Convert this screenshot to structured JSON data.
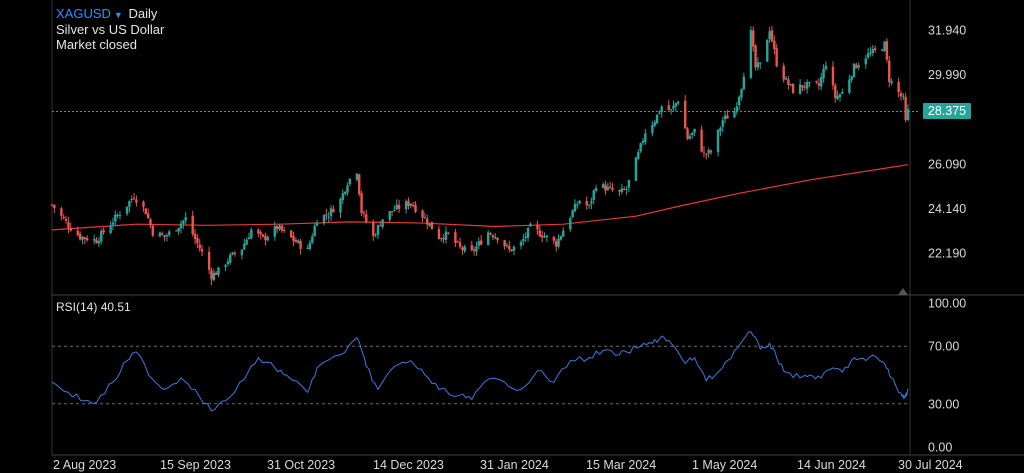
{
  "header": {
    "symbol": "XAGUSD",
    "interval": "Daily",
    "description": "Silver vs US Dollar",
    "status": "Market closed"
  },
  "last_price": "28.375",
  "rsi": {
    "label": "RSI(14)",
    "value": "40.51"
  },
  "colors": {
    "up": "#26a69a",
    "down": "#ef5350",
    "ma": "#e53935",
    "rsi_line": "#3b7be0",
    "grid": "#2a2a2a"
  },
  "chart_data": [
    {
      "type": "candlestick",
      "x_tick_labels": [
        "2 Aug 2023",
        "15 Sep 2023",
        "31 Oct 2023",
        "14 Dec 2023",
        "31 Jan 2024",
        "15 Mar 2024",
        "1 May 2024",
        "14 Jun 2024",
        "30 Jul 2024"
      ],
      "y_tick_labels": [
        "31.940",
        "29.990",
        "26.090",
        "24.140",
        "22.190"
      ],
      "ylim": [
        21.0,
        32.9
      ],
      "last_value": 28.375,
      "x_range": [
        "2023-07-27",
        "2024-07-26"
      ],
      "moving_average": {
        "points": [
          [
            "2023-07-27",
            23.2
          ],
          [
            "2023-09-01",
            23.45
          ],
          [
            "2023-10-01",
            23.4
          ],
          [
            "2023-11-01",
            23.45
          ],
          [
            "2023-12-01",
            23.55
          ],
          [
            "2024-01-01",
            23.5
          ],
          [
            "2024-02-01",
            23.35
          ],
          [
            "2024-03-01",
            23.45
          ],
          [
            "2024-04-01",
            23.8
          ],
          [
            "2024-04-20",
            24.25
          ],
          [
            "2024-05-15",
            24.8
          ],
          [
            "2024-06-15",
            25.4
          ],
          [
            "2024-07-26",
            26.05
          ]
        ]
      },
      "price_path": [
        [
          "2023-07-27",
          24.3
        ],
        [
          "2023-08-03",
          23.4
        ],
        [
          "2023-08-08",
          22.9
        ],
        [
          "2023-08-15",
          22.75
        ],
        [
          "2023-08-22",
          23.6
        ],
        [
          "2023-08-28",
          24.3
        ],
        [
          "2023-08-31",
          24.7
        ],
        [
          "2023-09-05",
          24.0
        ],
        [
          "2023-09-08",
          23.1
        ],
        [
          "2023-09-13",
          22.9
        ],
        [
          "2023-09-18",
          23.3
        ],
        [
          "2023-09-22",
          23.7
        ],
        [
          "2023-09-26",
          22.8
        ],
        [
          "2023-09-29",
          22.2
        ],
        [
          "2023-10-03",
          21.2
        ],
        [
          "2023-10-06",
          21.4
        ],
        [
          "2023-10-11",
          22.0
        ],
        [
          "2023-10-16",
          22.4
        ],
        [
          "2023-10-20",
          23.2
        ],
        [
          "2023-10-25",
          22.8
        ],
        [
          "2023-10-31",
          23.3
        ],
        [
          "2023-11-04",
          23.0
        ],
        [
          "2023-11-09",
          22.6
        ],
        [
          "2023-11-13",
          22.3
        ],
        [
          "2023-11-17",
          23.7
        ],
        [
          "2023-11-22",
          23.9
        ],
        [
          "2023-11-27",
          24.5
        ],
        [
          "2023-11-30",
          25.3
        ],
        [
          "2023-12-04",
          25.8
        ],
        [
          "2023-12-06",
          24.0
        ],
        [
          "2023-12-11",
          22.9
        ],
        [
          "2023-12-15",
          23.7
        ],
        [
          "2023-12-20",
          24.1
        ],
        [
          "2023-12-27",
          24.4
        ],
        [
          "2024-01-02",
          23.7
        ],
        [
          "2024-01-08",
          22.9
        ],
        [
          "2024-01-12",
          23.0
        ],
        [
          "2024-01-17",
          22.4
        ],
        [
          "2024-01-22",
          22.2
        ],
        [
          "2024-01-29",
          23.1
        ],
        [
          "2024-02-02",
          22.9
        ],
        [
          "2024-02-07",
          22.3
        ],
        [
          "2024-02-12",
          22.6
        ],
        [
          "2024-02-16",
          23.3
        ],
        [
          "2024-02-21",
          23.0
        ],
        [
          "2024-02-27",
          22.6
        ],
        [
          "2024-03-01",
          23.2
        ],
        [
          "2024-03-05",
          24.0
        ],
        [
          "2024-03-08",
          24.5
        ],
        [
          "2024-03-12",
          24.2
        ],
        [
          "2024-03-15",
          25.2
        ],
        [
          "2024-03-20",
          25.0
        ],
        [
          "2024-03-25",
          24.8
        ],
        [
          "2024-03-28",
          25.0
        ],
        [
          "2024-04-02",
          26.5
        ],
        [
          "2024-04-05",
          27.5
        ],
        [
          "2024-04-09",
          28.0
        ],
        [
          "2024-04-12",
          28.6
        ],
        [
          "2024-04-16",
          28.4
        ],
        [
          "2024-04-19",
          28.9
        ],
        [
          "2024-04-23",
          27.2
        ],
        [
          "2024-04-26",
          27.5
        ],
        [
          "2024-04-30",
          26.5
        ],
        [
          "2024-05-03",
          26.6
        ],
        [
          "2024-05-08",
          28.0
        ],
        [
          "2024-05-13",
          28.4
        ],
        [
          "2024-05-16",
          29.5
        ],
        [
          "2024-05-20",
          31.8
        ],
        [
          "2024-05-22",
          30.3
        ],
        [
          "2024-05-24",
          30.4
        ],
        [
          "2024-05-28",
          32.0
        ],
        [
          "2024-05-31",
          30.5
        ],
        [
          "2024-06-04",
          29.7
        ],
        [
          "2024-06-07",
          29.3
        ],
        [
          "2024-06-11",
          29.5
        ],
        [
          "2024-06-14",
          29.5
        ],
        [
          "2024-06-18",
          29.5
        ],
        [
          "2024-06-21",
          30.5
        ],
        [
          "2024-06-25",
          29.0
        ],
        [
          "2024-06-28",
          29.2
        ],
        [
          "2024-07-03",
          30.3
        ],
        [
          "2024-07-08",
          30.8
        ],
        [
          "2024-07-12",
          31.0
        ],
        [
          "2024-07-16",
          31.3
        ],
        [
          "2024-07-18",
          29.8
        ],
        [
          "2024-07-22",
          29.2
        ],
        [
          "2024-07-24",
          28.9
        ],
        [
          "2024-07-25",
          27.9
        ],
        [
          "2024-07-26",
          28.375
        ]
      ]
    },
    {
      "type": "line",
      "series_label": "RSI(14)",
      "y_tick_labels": [
        "100.00",
        "70.00",
        "30.00",
        "0.00"
      ],
      "ylim": [
        0,
        100
      ],
      "levels": [
        70,
        30
      ],
      "last_value": 40.51,
      "points": [
        [
          "2023-07-27",
          45
        ],
        [
          "2023-08-03",
          38
        ],
        [
          "2023-08-10",
          32
        ],
        [
          "2023-08-15",
          31
        ],
        [
          "2023-08-22",
          45
        ],
        [
          "2023-08-28",
          60
        ],
        [
          "2023-09-01",
          66
        ],
        [
          "2023-09-08",
          47
        ],
        [
          "2023-09-13",
          40
        ],
        [
          "2023-09-20",
          48
        ],
        [
          "2023-09-26",
          40
        ],
        [
          "2023-10-03",
          25
        ],
        [
          "2023-10-09",
          32
        ],
        [
          "2023-10-17",
          47
        ],
        [
          "2023-10-23",
          62
        ],
        [
          "2023-10-30",
          55
        ],
        [
          "2023-11-04",
          50
        ],
        [
          "2023-11-13",
          38
        ],
        [
          "2023-11-17",
          55
        ],
        [
          "2023-11-27",
          64
        ],
        [
          "2023-12-04",
          76
        ],
        [
          "2023-12-08",
          56
        ],
        [
          "2023-12-13",
          40
        ],
        [
          "2023-12-20",
          56
        ],
        [
          "2023-12-27",
          60
        ],
        [
          "2024-01-02",
          50
        ],
        [
          "2024-01-08",
          40
        ],
        [
          "2024-01-17",
          36
        ],
        [
          "2024-01-22",
          33
        ],
        [
          "2024-01-29",
          47
        ],
        [
          "2024-02-05",
          45
        ],
        [
          "2024-02-12",
          40
        ],
        [
          "2024-02-19",
          53
        ],
        [
          "2024-02-26",
          45
        ],
        [
          "2024-03-04",
          60
        ],
        [
          "2024-03-12",
          62
        ],
        [
          "2024-03-18",
          67
        ],
        [
          "2024-03-25",
          64
        ],
        [
          "2024-03-28",
          66
        ],
        [
          "2024-04-03",
          70
        ],
        [
          "2024-04-08",
          72
        ],
        [
          "2024-04-12",
          77
        ],
        [
          "2024-04-16",
          72
        ],
        [
          "2024-04-22",
          58
        ],
        [
          "2024-04-26",
          62
        ],
        [
          "2024-05-01",
          46
        ],
        [
          "2024-05-06",
          52
        ],
        [
          "2024-05-10",
          60
        ],
        [
          "2024-05-16",
          73
        ],
        [
          "2024-05-20",
          80
        ],
        [
          "2024-05-24",
          68
        ],
        [
          "2024-05-28",
          72
        ],
        [
          "2024-05-31",
          62
        ],
        [
          "2024-06-04",
          52
        ],
        [
          "2024-06-10",
          48
        ],
        [
          "2024-06-14",
          50
        ],
        [
          "2024-06-19",
          48
        ],
        [
          "2024-06-24",
          55
        ],
        [
          "2024-06-28",
          52
        ],
        [
          "2024-07-03",
          62
        ],
        [
          "2024-07-08",
          60
        ],
        [
          "2024-07-12",
          63
        ],
        [
          "2024-07-16",
          58
        ],
        [
          "2024-07-19",
          48
        ],
        [
          "2024-07-22",
          38
        ],
        [
          "2024-07-24",
          36
        ],
        [
          "2024-07-25",
          35
        ],
        [
          "2024-07-26",
          40.51
        ]
      ]
    }
  ]
}
